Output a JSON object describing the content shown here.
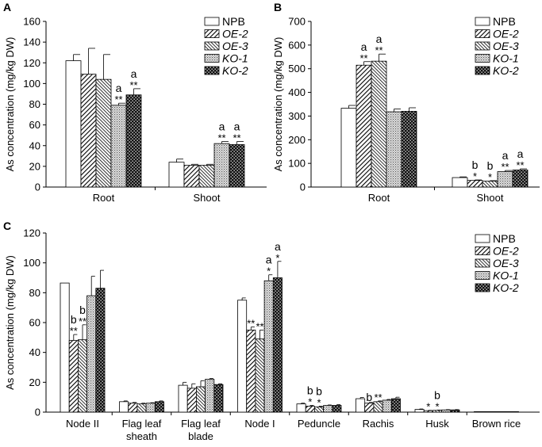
{
  "series_names": [
    "NPB",
    "OE-2",
    "OE-3",
    "KO-1",
    "KO-2"
  ],
  "patterns": [
    "solid-white",
    "diagonal-back",
    "diagonal-forward-dense",
    "dotted-light",
    "checker-dark"
  ],
  "chart_data": [
    {
      "panel": "A",
      "type": "bar",
      "ylabel": "As concentration (mg/kg DW)",
      "ylim": [
        0,
        160
      ],
      "yticks": [
        0,
        20,
        40,
        60,
        80,
        100,
        120,
        140,
        160
      ],
      "categories": [
        "Root",
        "Shoot"
      ],
      "legend_position": "top-right",
      "series": [
        {
          "name": "NPB",
          "values": [
            122,
            24
          ],
          "errors": [
            6,
            3
          ],
          "marks": [
            "",
            ""
          ],
          "letters": [
            "",
            ""
          ]
        },
        {
          "name": "OE-2",
          "values": [
            109,
            21
          ],
          "errors": [
            25,
            1
          ],
          "marks": [
            "",
            ""
          ],
          "letters": [
            "",
            ""
          ]
        },
        {
          "name": "OE-3",
          "values": [
            104,
            21
          ],
          "errors": [
            24,
            1
          ],
          "marks": [
            "",
            ""
          ],
          "letters": [
            "",
            ""
          ]
        },
        {
          "name": "KO-1",
          "values": [
            79,
            42
          ],
          "errors": [
            2,
            2
          ],
          "marks": [
            "**",
            "**"
          ],
          "letters": [
            "a",
            "a"
          ]
        },
        {
          "name": "KO-2",
          "values": [
            89,
            41
          ],
          "errors": [
            6,
            3
          ],
          "marks": [
            "**",
            "**"
          ],
          "letters": [
            "a",
            "a"
          ]
        }
      ]
    },
    {
      "panel": "B",
      "type": "bar",
      "ylabel": "As concentration (mg/kg DW)",
      "ylim": [
        0,
        700
      ],
      "yticks": [
        0,
        100,
        200,
        300,
        400,
        500,
        600,
        700
      ],
      "categories": [
        "Root",
        "Shoot"
      ],
      "legend_position": "top-right",
      "series": [
        {
          "name": "NPB",
          "values": [
            333,
            40
          ],
          "errors": [
            12,
            3
          ],
          "marks": [
            "",
            ""
          ],
          "letters": [
            "",
            ""
          ]
        },
        {
          "name": "OE-2",
          "values": [
            515,
            28
          ],
          "errors": [
            15,
            2
          ],
          "marks": [
            "**",
            "*"
          ],
          "letters": [
            "a",
            "b"
          ]
        },
        {
          "name": "OE-3",
          "values": [
            532,
            25
          ],
          "errors": [
            30,
            2
          ],
          "marks": [
            "**",
            "*"
          ],
          "letters": [
            "a",
            "b"
          ]
        },
        {
          "name": "KO-1",
          "values": [
            318,
            65
          ],
          "errors": [
            12,
            5
          ],
          "marks": [
            "",
            "**"
          ],
          "letters": [
            "",
            "a"
          ]
        },
        {
          "name": "KO-2",
          "values": [
            320,
            72
          ],
          "errors": [
            15,
            5
          ],
          "marks": [
            "",
            "**"
          ],
          "letters": [
            "",
            "a"
          ]
        }
      ]
    },
    {
      "panel": "C",
      "type": "bar",
      "ylabel": "As concentration (mg/kg DW)",
      "ylim": [
        0,
        120
      ],
      "yticks": [
        0,
        20,
        40,
        60,
        80,
        100,
        120
      ],
      "categories": [
        "Node II",
        "Flag leaf sheath",
        "Flag leaf blade",
        "Node I",
        "Peduncle",
        "Rachis",
        "Husk",
        "Brown rice"
      ],
      "category_lines": [
        [
          "Node II"
        ],
        [
          "Flag leaf",
          "sheath"
        ],
        [
          "Flag leaf",
          "blade"
        ],
        [
          "Node I"
        ],
        [
          "Peduncle"
        ],
        [
          "Rachis"
        ],
        [
          "Husk"
        ],
        [
          "Brown rice"
        ]
      ],
      "legend_position": "top-right",
      "series": [
        {
          "name": "NPB",
          "values": [
            86.5,
            7,
            18,
            75,
            5.5,
            9,
            1.8,
            0.3
          ],
          "errors": [
            0,
            0.5,
            2,
            1.5,
            0.5,
            0.8,
            0.3,
            0
          ],
          "marks": [
            "",
            "",
            "",
            "",
            "",
            "",
            "",
            ""
          ],
          "letters": [
            "",
            "",
            "",
            "",
            "",
            "",
            "",
            ""
          ]
        },
        {
          "name": "OE-2",
          "values": [
            48,
            6,
            16,
            55,
            4,
            6,
            1,
            0.3
          ],
          "errors": [
            4,
            0.5,
            3,
            2,
            0.5,
            0.5,
            0.2,
            0
          ],
          "marks": [
            "**",
            "",
            "",
            "**",
            "*",
            "",
            "*",
            ""
          ],
          "letters": [
            "b",
            "",
            "",
            "",
            "b",
            "b",
            "",
            ""
          ],
          "mark_offsets": [
            0,
            0,
            0,
            0,
            0,
            0,
            0,
            0
          ]
        },
        {
          "name": "OE-3",
          "values": [
            48.5,
            5.5,
            17,
            49,
            3.5,
            7,
            1.2,
            0.3
          ],
          "errors": [
            10,
            0.5,
            4,
            6,
            0.5,
            0.5,
            0.2,
            0
          ],
          "marks": [
            "**",
            "",
            "",
            "**",
            "*",
            "**",
            "*",
            ""
          ],
          "letters": [
            "b",
            "",
            "",
            "",
            "b",
            "",
            "b",
            ""
          ]
        },
        {
          "name": "KO-1",
          "values": [
            78,
            6,
            22,
            88,
            4.5,
            8,
            1.5,
            0.3
          ],
          "errors": [
            13,
            0.3,
            0.5,
            4,
            0.3,
            0.5,
            0.2,
            0
          ],
          "marks": [
            "",
            "",
            "",
            "*",
            "",
            "",
            "",
            ""
          ],
          "letters": [
            "",
            "",
            "",
            "a",
            "",
            "",
            "",
            ""
          ]
        },
        {
          "name": "KO-2",
          "values": [
            83,
            7,
            18.5,
            90,
            4.5,
            9,
            1.5,
            0.3
          ],
          "errors": [
            12,
            0.5,
            0.5,
            11,
            0.5,
            1,
            0.2,
            0
          ],
          "marks": [
            "",
            "",
            "",
            "*",
            "",
            "",
            "",
            ""
          ],
          "letters": [
            "",
            "",
            "",
            "a",
            "",
            "",
            "",
            ""
          ]
        }
      ]
    }
  ]
}
